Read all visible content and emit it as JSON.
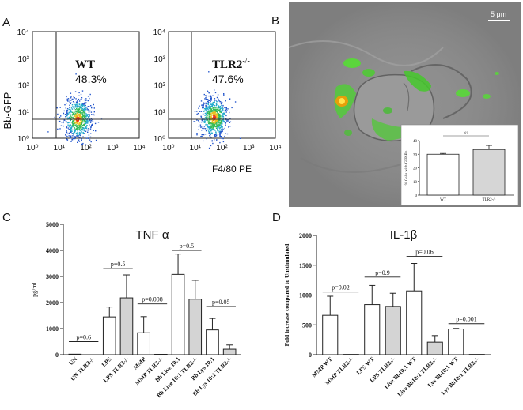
{
  "panels": {
    "A": {
      "letter": "A",
      "y_label": "Bb-GFP",
      "x_label": "F4/80 PE",
      "y_ticks": [
        "10⁰",
        "10¹",
        "10²",
        "10³",
        "10⁴"
      ],
      "x_ticks": [
        "10⁰",
        "10¹",
        "10²",
        "10³",
        "10⁴"
      ],
      "plots": [
        {
          "name": "WT",
          "percent": "48.3%"
        },
        {
          "name": "TLR2",
          "superscript": "-/-",
          "percent": "47.6%"
        }
      ]
    },
    "B": {
      "letter": "B",
      "scale_bar": "5 μm",
      "inset": {
        "ylabel": "% Cells with GFP-Bb",
        "categories": [
          "WT",
          "TLR2-/-"
        ],
        "values": [
          30,
          33.5
        ],
        "errors": [
          0.6,
          3
        ],
        "yticks": [
          "0",
          "10",
          "20",
          "30",
          "40"
        ],
        "ylim": [
          0,
          40
        ],
        "sig_label": "NS"
      }
    },
    "C": {
      "letter": "C",
      "title": "TNF α",
      "ylabel": "pg/ml"
    },
    "D": {
      "letter": "D",
      "title": "IL-1β",
      "ylabel": "Fold increase compared to Unstimulated"
    }
  },
  "chart_data": [
    {
      "type": "bar",
      "title": "TNF α",
      "ylabel": "pg/ml",
      "ylim": [
        0,
        5000
      ],
      "yticks": [
        0,
        1000,
        2000,
        3000,
        4000,
        5000
      ],
      "categories": [
        "UN",
        "UN TLR2-/-",
        "LPS",
        "LPS TLR2-/-",
        "MMP",
        "MMP TLR2-/-",
        "Bb Live 10:1",
        "Bb Live 10:1 TLR2-/-",
        "Bb Lys 10:1",
        "Bb Lys 10:1 TLR2-/-"
      ],
      "values": [
        20,
        0,
        1450,
        2180,
        840,
        15,
        3080,
        2130,
        950,
        210
      ],
      "errors": [
        0,
        0,
        380,
        880,
        620,
        0,
        780,
        720,
        440,
        160
      ],
      "fills": [
        "white",
        "gray",
        "white",
        "gray",
        "white",
        "gray",
        "white",
        "gray",
        "white",
        "gray"
      ],
      "annotations": [
        {
          "text": "p=0.6",
          "pair": [
            0,
            1
          ],
          "y": 500
        },
        {
          "text": "p=0.5",
          "pair": [
            2,
            3
          ],
          "y": 3300
        },
        {
          "text": "p=0.008",
          "pair": [
            4,
            5
          ],
          "y": 1950
        },
        {
          "text": "p=0.5",
          "pair": [
            6,
            7
          ],
          "y": 4000
        },
        {
          "text": "p=0.05",
          "pair": [
            8,
            9
          ],
          "y": 1850
        }
      ]
    },
    {
      "type": "bar",
      "title": "IL-1β",
      "ylabel": "Fold increase compared to Unstimulated",
      "ylim": [
        0,
        2000
      ],
      "yticks": [
        0,
        500,
        1000,
        1500,
        2000
      ],
      "categories": [
        "MMP WT",
        "MMP TLR2-/-",
        "LPS WT",
        "LPS TLR2-/-",
        "Live Bb10:1 WT",
        "Live Bb10:1 TLR2-/-",
        "Lys Bb10:1 WT",
        "Lys Bb10:1 TLR2-/-"
      ],
      "values": [
        660,
        5,
        840,
        810,
        1070,
        210,
        430,
        5
      ],
      "errors": [
        320,
        0,
        320,
        220,
        460,
        110,
        10,
        0
      ],
      "fills": [
        "white",
        "gray",
        "white",
        "gray",
        "white",
        "gray",
        "white",
        "gray"
      ],
      "annotations": [
        {
          "text": "p=0.02",
          "pair": [
            0,
            1
          ],
          "y": 1050
        },
        {
          "text": "p=0.9",
          "pair": [
            2,
            3
          ],
          "y": 1300
        },
        {
          "text": "p=0.06",
          "pair": [
            4,
            5
          ],
          "y": 1650
        },
        {
          "text": "p=0.001",
          "pair": [
            6,
            7
          ],
          "y": 520
        }
      ]
    }
  ]
}
